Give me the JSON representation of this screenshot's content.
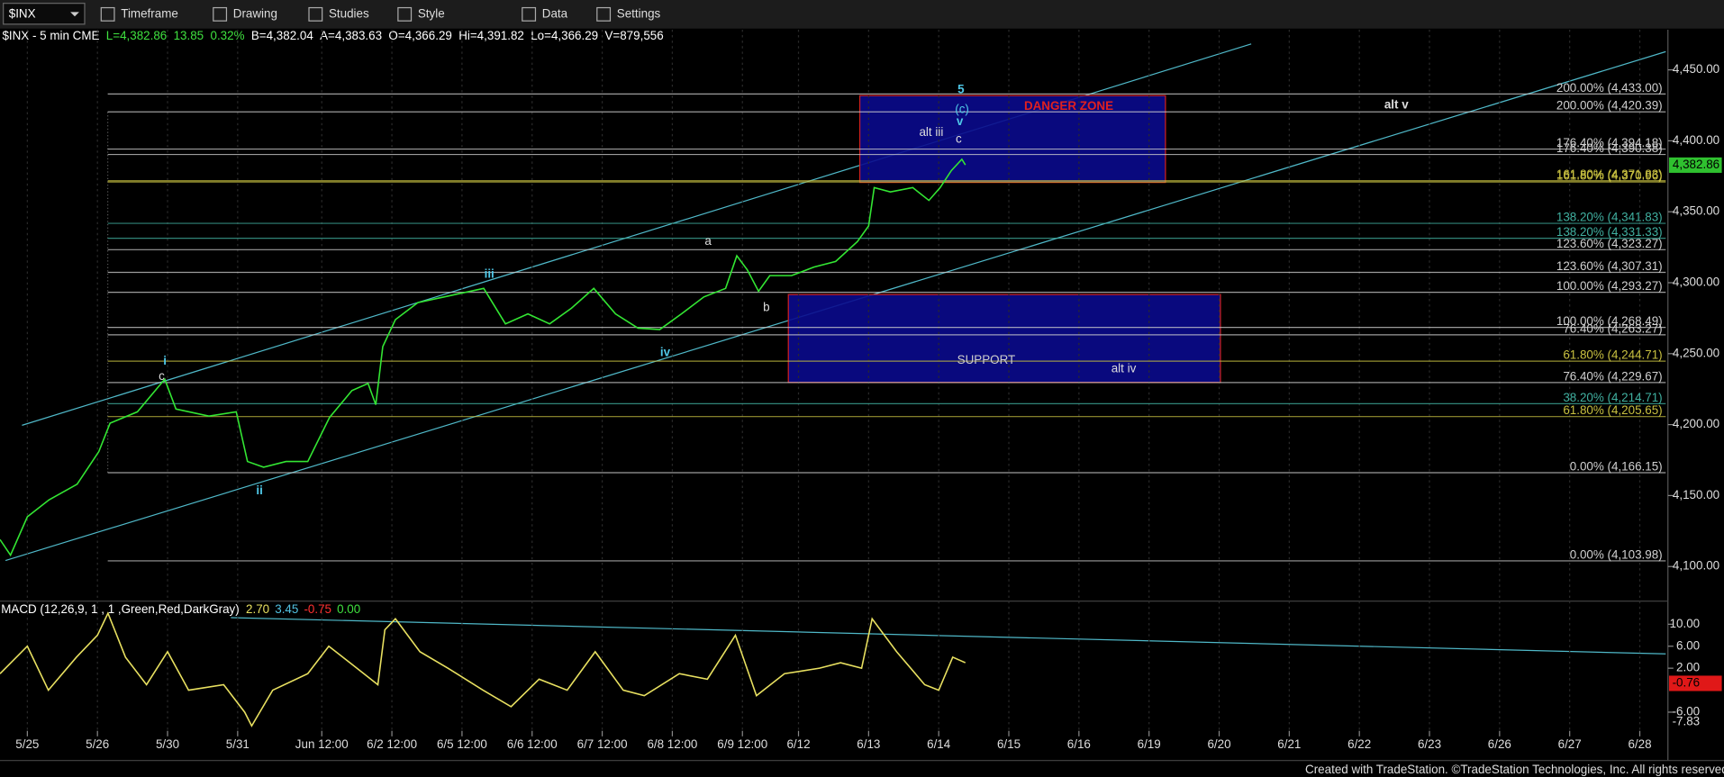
{
  "toolbar": {
    "symbol": "$INX",
    "items": [
      "Timeframe",
      "Drawing",
      "Studies",
      "Style",
      "Data",
      "Settings"
    ]
  },
  "quote": [
    {
      "text": "$INX - 5 min  CME",
      "color": "#ffffff"
    },
    {
      "text": "L=4,382.86",
      "color": "#3fe03f"
    },
    {
      "text": "13.85",
      "color": "#3fe03f"
    },
    {
      "text": "0.32%",
      "color": "#3fe03f"
    },
    {
      "text": "B=4,382.04",
      "color": "#ffffff"
    },
    {
      "text": "A=4,383.63",
      "color": "#ffffff"
    },
    {
      "text": "O=4,366.29",
      "color": "#ffffff"
    },
    {
      "text": "Hi=4,391.82",
      "color": "#ffffff"
    },
    {
      "text": "Lo=4,366.29",
      "color": "#ffffff"
    },
    {
      "text": "V=879,556",
      "color": "#ffffff"
    }
  ],
  "chart_data": [
    {
      "type": "line",
      "color": "#33e633",
      "x": [
        -0.39,
        -0.24,
        0,
        0.31,
        0.71,
        1.02,
        1.18,
        1.57,
        1.96,
        2.12,
        2.59,
        2.98,
        3.14,
        3.37,
        3.69,
        4.0,
        4.31,
        4.63,
        4.86,
        4.97,
        5.07,
        5.25,
        5.57,
        6.04,
        6.51,
        6.82,
        7.14,
        7.45,
        7.76,
        8.08,
        8.39,
        8.71,
        9.02,
        9.33,
        9.65,
        9.96,
        10.12,
        10.27,
        10.43,
        10.59,
        10.9,
        11.22,
        11.53,
        11.84,
        12.0,
        12.08,
        12.31,
        12.63,
        12.86,
        13.02,
        13.18,
        13.33,
        13.38
      ],
      "values": [
        4119,
        4108,
        4135,
        4147,
        4158,
        4181,
        4201,
        4209,
        4232,
        4211,
        4206,
        4209,
        4174,
        4170,
        4174,
        4174,
        4205,
        4224,
        4229,
        4214,
        4255,
        4274,
        4286,
        4291,
        4296,
        4271,
        4278,
        4271,
        4282,
        4296,
        4278,
        4268,
        4267,
        4278,
        4290,
        4296,
        4319,
        4309,
        4294,
        4305,
        4305,
        4311,
        4315,
        4329,
        4340,
        4367,
        4364,
        4367,
        4358,
        4367,
        4379,
        4387,
        4383
      ],
      "xlim": [
        -0.39,
        23.37
      ],
      "xticks": [
        {
          "value": 0,
          "label": "5/25"
        },
        {
          "value": 1,
          "label": "5/26"
        },
        {
          "value": 2,
          "label": "5/30"
        },
        {
          "value": 3,
          "label": "5/31"
        },
        {
          "value": 4.2,
          "label": "Jun 12:00"
        },
        {
          "value": 5.2,
          "label": "6/2 12:00"
        },
        {
          "value": 6.2,
          "label": "6/5 12:00"
        },
        {
          "value": 7.2,
          "label": "6/6 12:00"
        },
        {
          "value": 8.2,
          "label": "6/7 12:00"
        },
        {
          "value": 9.2,
          "label": "6/8 12:00"
        },
        {
          "value": 10.2,
          "label": "6/9 12:00"
        },
        {
          "value": 11,
          "label": "6/12"
        },
        {
          "value": 12,
          "label": "6/13"
        },
        {
          "value": 13,
          "label": "6/14"
        },
        {
          "value": 14,
          "label": "6/15"
        },
        {
          "value": 15,
          "label": "6/16"
        },
        {
          "value": 16,
          "label": "6/19"
        },
        {
          "value": 17,
          "label": "6/20"
        },
        {
          "value": 18,
          "label": "6/21"
        },
        {
          "value": 19,
          "label": "6/22"
        },
        {
          "value": 20,
          "label": "6/23"
        },
        {
          "value": 21,
          "label": "6/26"
        },
        {
          "value": 22,
          "label": "6/27"
        },
        {
          "value": 23,
          "label": "6/28"
        }
      ],
      "ylim": [
        4081,
        4476
      ],
      "yticks": [
        {
          "value": 4100,
          "label": "4,100.00"
        },
        {
          "value": 4150,
          "label": "4,150.00"
        },
        {
          "value": 4200,
          "label": "4,200.00"
        },
        {
          "value": 4250,
          "label": "4,250.00"
        },
        {
          "value": 4300,
          "label": "4,300.00"
        },
        {
          "value": 4350,
          "label": "4,350.00"
        },
        {
          "value": 4400,
          "label": "4,400.00"
        },
        {
          "value": 4450,
          "label": "4,450.00"
        }
      ],
      "last": {
        "value": 4382.86,
        "label": "4,382.86"
      },
      "levels": [
        {
          "value": 4433,
          "label": "200.00% (4,433.00)",
          "color": "#d0d0d0"
        },
        {
          "value": 4420.39,
          "label": "200.00% (4,420.39)",
          "color": "#d0d0d0"
        },
        {
          "value": 4394.18,
          "label": "176.40% (4,394.18)",
          "color": "#d0d0d0"
        },
        {
          "value": 4390.38,
          "label": "176.40% (4,390.38)",
          "color": "#d0d0d0"
        },
        {
          "value": 4371.83,
          "label": "161.80% (4,371.83)",
          "color": "#c8c040"
        },
        {
          "value": 4370.96,
          "label": "161.80% (4,370.96)",
          "color": "#c8c040"
        },
        {
          "value": 4341.83,
          "label": "138.20% (4,341.83)",
          "color": "#40b0a0"
        },
        {
          "value": 4331.33,
          "label": "138.20% (4,331.33)",
          "color": "#40b0a0"
        },
        {
          "value": 4323.27,
          "label": "123.60% (4,323.27)",
          "color": "#d0d0d0"
        },
        {
          "value": 4307.31,
          "label": "123.60% (4,307.31)",
          "color": "#d0d0d0"
        },
        {
          "value": 4293.27,
          "label": "100.00% (4,293.27)",
          "color": "#d0d0d0"
        },
        {
          "value": 4268.49,
          "label": "100.00% (4,268.49)",
          "color": "#d0d0d0"
        },
        {
          "value": 4263.27,
          "label": "76.40% (4,263.27)",
          "color": "#d0d0d0"
        },
        {
          "value": 4244.71,
          "label": "61.80% (4,244.71)",
          "color": "#c8c040"
        },
        {
          "value": 4229.67,
          "label": "76.40% (4,229.67)",
          "color": "#d0d0d0"
        },
        {
          "value": 4214.71,
          "label": "38.20% (4,214.71)",
          "color": "#40b0a0"
        },
        {
          "value": 4205.65,
          "label": "61.80% (4,205.65)",
          "color": "#c8c040"
        },
        {
          "value": 4166.15,
          "label": "0.00% (4,166.15)",
          "color": "#d0d0d0"
        },
        {
          "value": 4103.98,
          "label": "0.00% (4,103.98)",
          "color": "#d0d0d0"
        }
      ],
      "annotations": [
        "5",
        "(c)",
        "v",
        "c",
        "alt iii",
        "DANGER ZONE",
        "alt v",
        "iii",
        "a",
        "b",
        "iv",
        "SUPPORT",
        "alt iv",
        "i",
        "c",
        "ii"
      ]
    },
    {
      "type": "line",
      "title": "MACD (12,26,9, 1 , 1 ,Green,Red,DarkGray)",
      "color": "#e8e060",
      "study_values": [
        {
          "text": "2.70",
          "color": "#e8e060"
        },
        {
          "text": "3.45",
          "color": "#50c0e0"
        },
        {
          "text": "-0.75",
          "color": "#ff3030"
        },
        {
          "text": "0.00",
          "color": "#3fe03f"
        }
      ],
      "x": [
        -0.39,
        0,
        0.3,
        0.7,
        1.0,
        1.15,
        1.4,
        1.7,
        2.0,
        2.3,
        2.8,
        3.1,
        3.2,
        3.5,
        4.0,
        4.3,
        4.6,
        5.0,
        5.1,
        5.25,
        5.6,
        6.0,
        6.5,
        6.9,
        7.3,
        7.7,
        8.1,
        8.5,
        8.8,
        9.3,
        9.7,
        10.1,
        10.4,
        10.8,
        11.3,
        11.6,
        11.9,
        12.05,
        12.4,
        12.8,
        13.0,
        13.2,
        13.38
      ],
      "values": [
        1,
        6,
        -2,
        4,
        8,
        12,
        4,
        -1,
        5,
        -2,
        -1,
        -6,
        -8.5,
        -2,
        1,
        6,
        3,
        -1,
        9,
        11,
        5,
        2,
        -2,
        -5,
        0,
        -2,
        5,
        -2,
        -3,
        1,
        0,
        8,
        -3,
        1,
        2,
        3,
        2,
        11,
        5,
        -1,
        -2,
        4,
        3
      ],
      "ylim": [
        -9.4,
        14
      ],
      "yticks": [
        {
          "value": 10,
          "label": "10.00"
        },
        {
          "value": 6,
          "label": "6.00"
        },
        {
          "value": 2,
          "label": "2.00"
        },
        {
          "value": -6,
          "label": "-6.00"
        }
      ],
      "last": {
        "value": -0.76,
        "label": "-0.76"
      },
      "low": {
        "value": -7.83,
        "label": "-7.83"
      }
    }
  ],
  "footer": "Created with TradeStation. ©TradeStation Technologies, Inc. All rights reserved."
}
